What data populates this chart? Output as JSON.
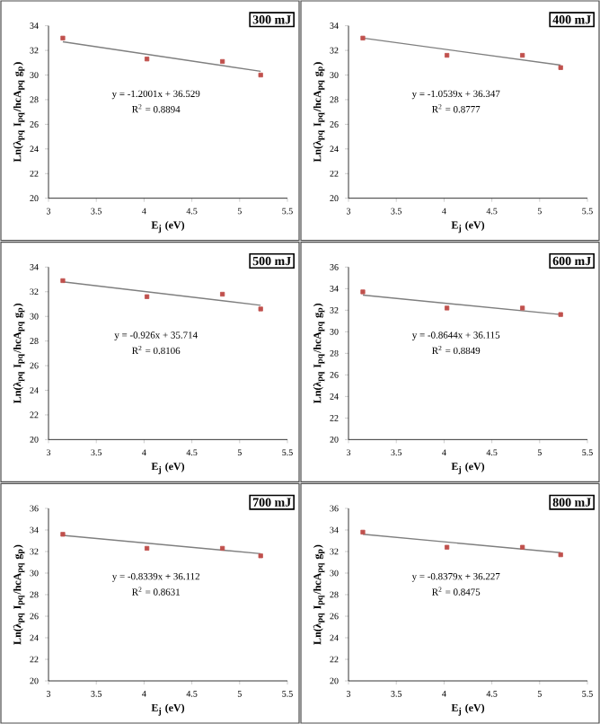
{
  "chart_data": [
    {
      "type": "scatter",
      "title": "300 mJ",
      "xlabel": "E$_{j}$ (eV)",
      "ylabel": "Ln(λ$_{pq}$ I$_{pq}$/hcA$_{pq}$ g$_{p}$)",
      "xlim": [
        3,
        5.5
      ],
      "xticks": [
        3,
        3.5,
        4,
        4.5,
        5,
        5.5
      ],
      "ylim": [
        20,
        34
      ],
      "yticks": [
        20,
        22,
        24,
        26,
        28,
        30,
        32,
        34
      ],
      "x": [
        3.15,
        4.03,
        4.82,
        5.22
      ],
      "series": [
        {
          "color": "#c0504d",
          "marker": "square",
          "values": [
            33.0,
            31.3,
            31.1,
            30.0
          ]
        },
        {
          "type": "line",
          "color": "#7f7f7f",
          "values": [
            32.7,
            null,
            null,
            30.3
          ]
        }
      ],
      "annotations": [
        "y = -1.2001x + 36.529",
        "R$^{2}$ = 0.8894"
      ]
    },
    {
      "type": "scatter",
      "title": "400 mJ",
      "xlabel": "E$_{j}$ (eV)",
      "ylabel": "Ln(λ$_{pq}$ I$_{pq}$/hcA$_{pq}$ g$_{p}$)",
      "xlim": [
        3,
        5.5
      ],
      "xticks": [
        3,
        3.5,
        4,
        4.5,
        5,
        5.5
      ],
      "ylim": [
        20,
        34
      ],
      "yticks": [
        20,
        22,
        24,
        26,
        28,
        30,
        32,
        34
      ],
      "x": [
        3.15,
        4.03,
        4.82,
        5.22
      ],
      "series": [
        {
          "color": "#c0504d",
          "marker": "square",
          "values": [
            33.0,
            31.6,
            31.6,
            30.6
          ]
        },
        {
          "type": "line",
          "color": "#7f7f7f",
          "values": [
            33.0,
            null,
            null,
            30.8
          ]
        }
      ],
      "annotations": [
        "y = -1.0539x + 36.347",
        "R$^{2}$ = 0.8777"
      ]
    },
    {
      "type": "scatter",
      "title": "500 mJ",
      "xlabel": "E$_{j}$ (eV)",
      "ylabel": "Ln(λ$_{pq}$ I$_{pq}$/hcA$_{pq}$ g$_{p}$)",
      "xlim": [
        3,
        5.5
      ],
      "xticks": [
        3,
        3.5,
        4,
        4.5,
        5,
        5.5
      ],
      "ylim": [
        20,
        34
      ],
      "yticks": [
        20,
        22,
        24,
        26,
        28,
        30,
        32,
        34
      ],
      "x": [
        3.15,
        4.03,
        4.82,
        5.22
      ],
      "series": [
        {
          "color": "#c0504d",
          "marker": "square",
          "values": [
            32.9,
            31.6,
            31.8,
            30.6
          ]
        },
        {
          "type": "line",
          "color": "#7f7f7f",
          "values": [
            32.8,
            null,
            null,
            30.9
          ]
        }
      ],
      "annotations": [
        "y = -0.926x + 35.714",
        "R$^{2}$ = 0.8106"
      ]
    },
    {
      "type": "scatter",
      "title": "600 mJ",
      "xlabel": "E$_{j}$ (eV)",
      "ylabel": "Ln(λ$_{pq}$ I$_{pq}$/hcA$_{pq}$ g$_{p}$)",
      "xlim": [
        3,
        5.5
      ],
      "xticks": [
        3,
        3.5,
        4,
        4.5,
        5,
        5.5
      ],
      "ylim": [
        20,
        36
      ],
      "yticks": [
        20,
        22,
        24,
        26,
        28,
        30,
        32,
        34,
        36
      ],
      "x": [
        3.15,
        4.03,
        4.82,
        5.22
      ],
      "series": [
        {
          "color": "#c0504d",
          "marker": "square",
          "values": [
            33.7,
            32.2,
            32.2,
            31.6
          ]
        },
        {
          "type": "line",
          "color": "#7f7f7f",
          "values": [
            33.4,
            null,
            null,
            31.6
          ]
        }
      ],
      "annotations": [
        "y = -0.8644x + 36.115",
        "R$^{2}$ = 0.8849"
      ]
    },
    {
      "type": "scatter",
      "title": "700 mJ",
      "xlabel": "E$_{j}$ (eV)",
      "ylabel": "Ln(λ$_{pq}$ I$_{pq}$/hcA$_{pq}$ g$_{p}$)",
      "xlim": [
        3,
        5.5
      ],
      "xticks": [
        3,
        3.5,
        4,
        4.5,
        5,
        5.5
      ],
      "ylim": [
        20,
        36
      ],
      "yticks": [
        20,
        22,
        24,
        26,
        28,
        30,
        32,
        34,
        36
      ],
      "x": [
        3.15,
        4.03,
        4.82,
        5.22
      ],
      "series": [
        {
          "color": "#c0504d",
          "marker": "square",
          "values": [
            33.6,
            32.3,
            32.3,
            31.6
          ]
        },
        {
          "type": "line",
          "color": "#7f7f7f",
          "values": [
            33.5,
            null,
            null,
            31.8
          ]
        }
      ],
      "annotations": [
        "y = -0.8339x + 36.112",
        "R$^{2}$ = 0.8631"
      ]
    },
    {
      "type": "scatter",
      "title": "800 mJ",
      "xlabel": "E$_{j}$ (eV)",
      "ylabel": "Ln(λ$_{pq}$ I$_{pq}$/hcA$_{pq}$ g$_{p}$)",
      "xlim": [
        3,
        5.5
      ],
      "xticks": [
        3,
        3.5,
        4,
        4.5,
        5,
        5.5
      ],
      "ylim": [
        20,
        36
      ],
      "yticks": [
        20,
        22,
        24,
        26,
        28,
        30,
        32,
        34,
        36
      ],
      "x": [
        3.15,
        4.03,
        4.82,
        5.22
      ],
      "series": [
        {
          "color": "#c0504d",
          "marker": "square",
          "values": [
            33.8,
            32.4,
            32.4,
            31.7
          ]
        },
        {
          "type": "line",
          "color": "#7f7f7f",
          "values": [
            33.6,
            null,
            null,
            31.9
          ]
        }
      ],
      "annotations": [
        "y = -0.8379x + 36.227",
        "R$^{2}$ = 0.8475"
      ]
    }
  ]
}
